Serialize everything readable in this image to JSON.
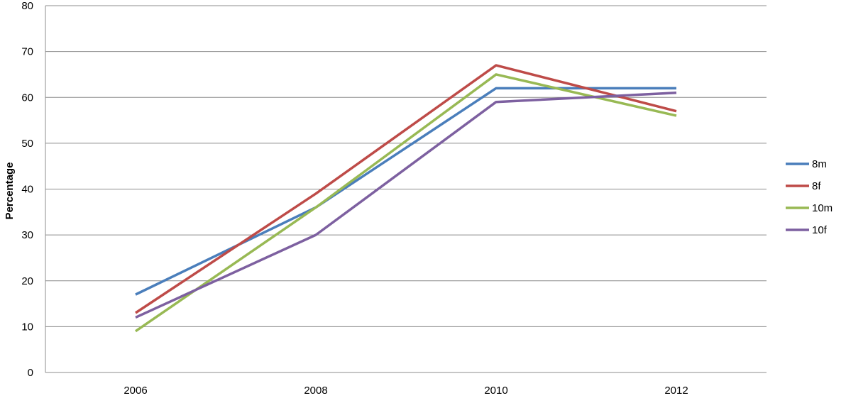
{
  "chart_data": {
    "type": "line",
    "title": "",
    "xlabel": "",
    "ylabel": "Percentage",
    "categories": [
      "2006",
      "2008",
      "2010",
      "2012"
    ],
    "ylim": [
      0,
      80
    ],
    "yticks": [
      0,
      10,
      20,
      30,
      40,
      50,
      60,
      70,
      80
    ],
    "grid": true,
    "legend_position": "right",
    "series": [
      {
        "name": "8m",
        "color": "#4a7ebb",
        "values": [
          17,
          36,
          62,
          62
        ]
      },
      {
        "name": "8f",
        "color": "#be4b48",
        "values": [
          13,
          39,
          67,
          57
        ]
      },
      {
        "name": "10m",
        "color": "#98b954",
        "values": [
          9,
          36,
          65,
          56
        ]
      },
      {
        "name": "10f",
        "color": "#7d60a0",
        "values": [
          12,
          30,
          59,
          61
        ]
      }
    ]
  }
}
